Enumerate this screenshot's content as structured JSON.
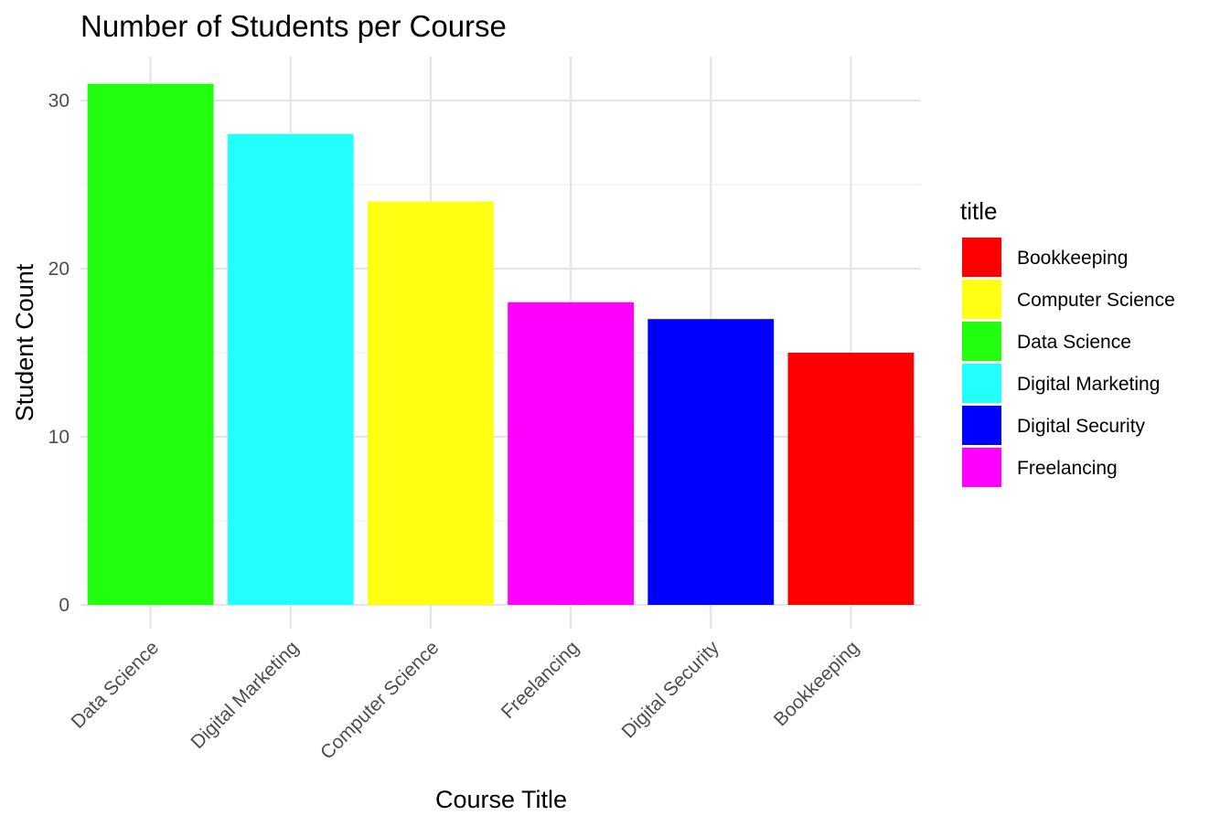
{
  "chart_data": {
    "type": "bar",
    "title": "Number of Students per Course",
    "xlabel": "Course Title",
    "ylabel": "Student Count",
    "categories": [
      "Data Science",
      "Digital Marketing",
      "Computer Science",
      "Freelancing",
      "Digital Security",
      "Bookkeeping"
    ],
    "values": [
      31,
      28,
      24,
      18,
      17,
      15
    ],
    "colors": [
      "#22ff0e",
      "#22ffff",
      "#ffff14",
      "#ff00ff",
      "#0000ff",
      "#ff0000"
    ],
    "ylim": [
      0,
      32.5
    ],
    "yticks": [
      0,
      10,
      20,
      30
    ],
    "grid": true,
    "legend": {
      "title": "title",
      "position": "right",
      "items": [
        {
          "label": "Bookkeeping",
          "color": "#ff0000"
        },
        {
          "label": "Computer Science",
          "color": "#ffff14"
        },
        {
          "label": "Data Science",
          "color": "#22ff0e"
        },
        {
          "label": "Digital Marketing",
          "color": "#22ffff"
        },
        {
          "label": "Digital Security",
          "color": "#0000ff"
        },
        {
          "label": "Freelancing",
          "color": "#ff00ff"
        }
      ]
    }
  }
}
